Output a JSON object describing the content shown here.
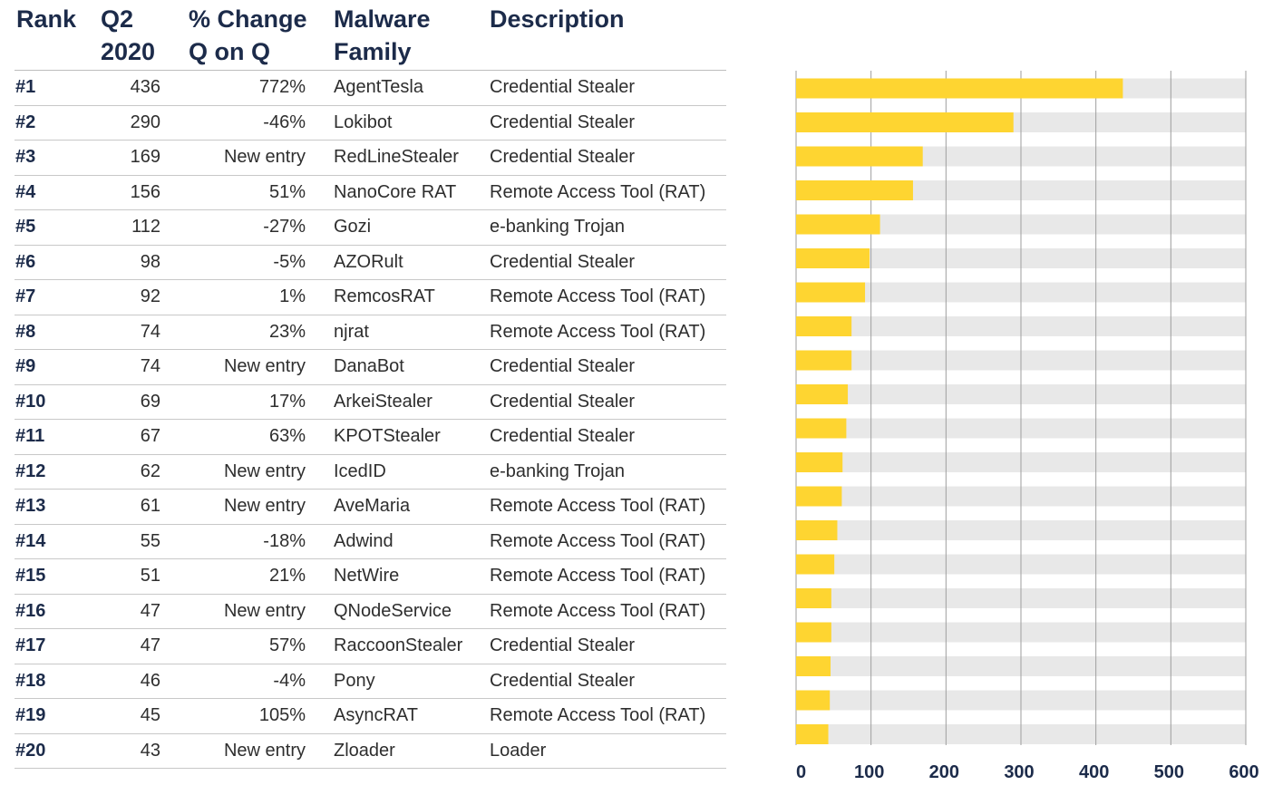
{
  "table": {
    "headers": {
      "rank": "Rank",
      "q2": "Q2\n2020",
      "change": "% Change\nQ on Q",
      "family": "Malware\nFamily",
      "description": "Description"
    },
    "rows": [
      {
        "rank": "#1",
        "q2": "436",
        "change": "772%",
        "family": "AgentTesla",
        "description": "Credential Stealer"
      },
      {
        "rank": "#2",
        "q2": "290",
        "change": "-46%",
        "family": "Lokibot",
        "description": "Credential Stealer"
      },
      {
        "rank": "#3",
        "q2": "169",
        "change": "New entry",
        "family": "RedLineStealer",
        "description": "Credential Stealer"
      },
      {
        "rank": "#4",
        "q2": "156",
        "change": "51%",
        "family": "NanoCore RAT",
        "description": "Remote Access Tool (RAT)"
      },
      {
        "rank": "#5",
        "q2": "112",
        "change": "-27%",
        "family": "Gozi",
        "description": "e-banking Trojan"
      },
      {
        "rank": "#6",
        "q2": "98",
        "change": "-5%",
        "family": "AZORult",
        "description": "Credential Stealer"
      },
      {
        "rank": "#7",
        "q2": "92",
        "change": "1%",
        "family": "RemcosRAT",
        "description": "Remote Access Tool (RAT)"
      },
      {
        "rank": "#8",
        "q2": "74",
        "change": "23%",
        "family": "njrat",
        "description": "Remote Access Tool (RAT)"
      },
      {
        "rank": "#9",
        "q2": "74",
        "change": "New entry",
        "family": "DanaBot",
        "description": "Credential Stealer"
      },
      {
        "rank": "#10",
        "q2": "69",
        "change": "17%",
        "family": "ArkeiStealer",
        "description": "Credential Stealer"
      },
      {
        "rank": "#11",
        "q2": "67",
        "change": "63%",
        "family": "KPOTStealer",
        "description": "Credential Stealer"
      },
      {
        "rank": "#12",
        "q2": "62",
        "change": "New entry",
        "family": "IcedID",
        "description": "e-banking Trojan"
      },
      {
        "rank": "#13",
        "q2": "61",
        "change": "New entry",
        "family": "AveMaria",
        "description": "Remote Access Tool (RAT)"
      },
      {
        "rank": "#14",
        "q2": "55",
        "change": "-18%",
        "family": "Adwind",
        "description": "Remote Access Tool (RAT)"
      },
      {
        "rank": "#15",
        "q2": "51",
        "change": "21%",
        "family": "NetWire",
        "description": "Remote Access Tool (RAT)"
      },
      {
        "rank": "#16",
        "q2": "47",
        "change": "New entry",
        "family": "QNodeService",
        "description": "Remote Access Tool (RAT)"
      },
      {
        "rank": "#17",
        "q2": "47",
        "change": "57%",
        "family": "RaccoonStealer",
        "description": "Credential Stealer"
      },
      {
        "rank": "#18",
        "q2": "46",
        "change": "-4%",
        "family": "Pony",
        "description": "Credential Stealer"
      },
      {
        "rank": "#19",
        "q2": "45",
        "change": "105%",
        "family": "AsyncRAT",
        "description": "Remote Access Tool (RAT)"
      },
      {
        "rank": "#20",
        "q2": "43",
        "change": "New entry",
        "family": "Zloader",
        "description": "Loader"
      }
    ]
  },
  "chart_data": {
    "type": "bar",
    "orientation": "horizontal",
    "categories": [
      "#1",
      "#2",
      "#3",
      "#4",
      "#5",
      "#6",
      "#7",
      "#8",
      "#9",
      "#10",
      "#11",
      "#12",
      "#13",
      "#14",
      "#15",
      "#16",
      "#17",
      "#18",
      "#19",
      "#20"
    ],
    "values": [
      436,
      290,
      169,
      156,
      112,
      98,
      92,
      74,
      74,
      69,
      67,
      62,
      61,
      55,
      51,
      47,
      47,
      46,
      45,
      43
    ],
    "xlim": [
      0,
      600
    ],
    "xticks": [
      0,
      100,
      200,
      300,
      400,
      500,
      600
    ],
    "title": "",
    "xlabel": "",
    "ylabel": "",
    "grid": "vertical",
    "legend": "none",
    "colors": {
      "bar": "#fed531",
      "track": "#e8e8e8",
      "grid": "#9e9e9e",
      "tick_label": "#1c2b4a"
    }
  }
}
